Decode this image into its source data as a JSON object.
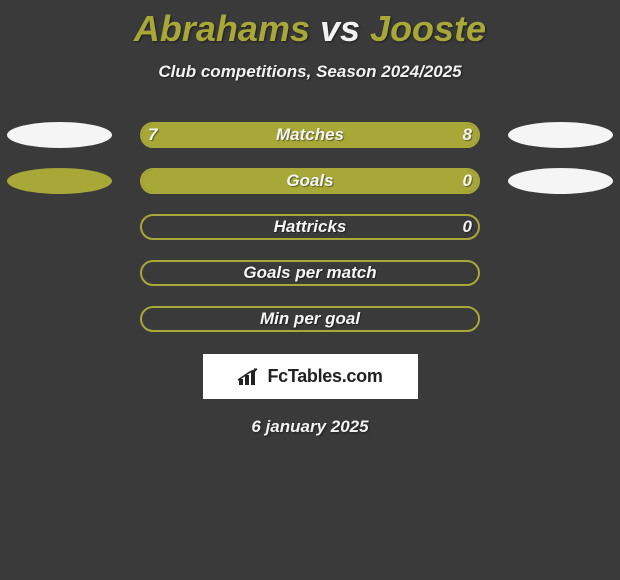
{
  "title": {
    "player1": "Abrahams",
    "vs": "vs",
    "player2": "Jooste"
  },
  "subtitle": "Club competitions, Season 2024/2025",
  "date": "6 january 2025",
  "logo_text": "FcTables.com",
  "colors": {
    "background": "#3a3a3a",
    "accent": "#a8a839",
    "ellipse_white": "#f5f5f5",
    "ellipse_olive": "#a8a839",
    "bar_border": "#a8a839",
    "bar_fill": "#a8a839",
    "text": "#f5f5f5"
  },
  "stats": [
    {
      "label": "Matches",
      "left_value": "7",
      "right_value": "8",
      "left_pct": 46.7,
      "right_pct": 53.3,
      "ellipse_left": "white",
      "ellipse_right": "white",
      "filled": true
    },
    {
      "label": "Goals",
      "left_value": "",
      "right_value": "0",
      "left_pct": 100,
      "right_pct": 0,
      "ellipse_left": "olive",
      "ellipse_right": "white",
      "filled": true
    },
    {
      "label": "Hattricks",
      "left_value": "",
      "right_value": "0",
      "left_pct": 0,
      "right_pct": 0,
      "ellipse_left": null,
      "ellipse_right": null,
      "filled": false
    },
    {
      "label": "Goals per match",
      "left_value": "",
      "right_value": "",
      "left_pct": 0,
      "right_pct": 0,
      "ellipse_left": null,
      "ellipse_right": null,
      "filled": false
    },
    {
      "label": "Min per goal",
      "left_value": "",
      "right_value": "",
      "left_pct": 0,
      "right_pct": 0,
      "ellipse_left": null,
      "ellipse_right": null,
      "filled": false
    }
  ]
}
